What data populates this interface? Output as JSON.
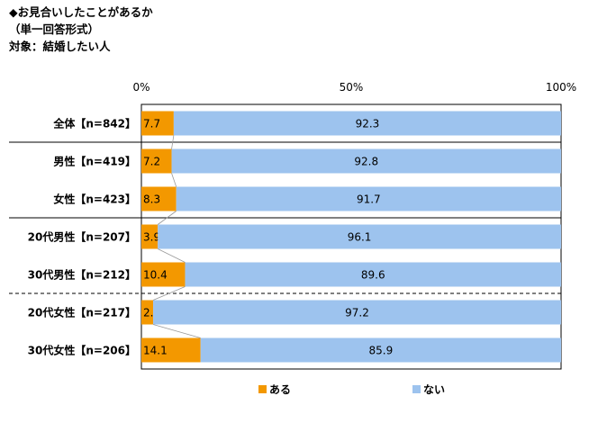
{
  "header": {
    "title": "◆お見合いしたことがあるか",
    "format": "（単一回答形式）",
    "subject": "対象：結婚したい人"
  },
  "chart_data": {
    "type": "bar",
    "orientation": "horizontal",
    "stacked": true,
    "percent_stacked": true,
    "categories": [
      "全体【n=842】",
      "男性【n=419】",
      "女性【n=423】",
      "20代男性【n=207】",
      "30代男性【n=212】",
      "20代女性【n=217】",
      "30代女性【n=206】"
    ],
    "series": [
      {
        "name": "ある",
        "color": "#f39800",
        "values": [
          7.7,
          7.2,
          8.3,
          3.9,
          10.4,
          2.8,
          14.1
        ]
      },
      {
        "name": "ない",
        "color": "#9dc3ee",
        "values": [
          92.3,
          92.8,
          91.7,
          96.1,
          89.6,
          97.2,
          85.9
        ]
      }
    ],
    "data_labels": [
      [
        "7.7",
        "7.2",
        "8.3",
        "3.9",
        "10.4",
        "2.8",
        "14.1"
      ],
      [
        "92.3",
        "92.8",
        "91.7",
        "96.1",
        "89.6",
        "97.2",
        "85.9"
      ]
    ],
    "x_ticks": [
      "0%",
      "50%",
      "100%"
    ],
    "xlim": [
      0,
      100
    ],
    "grid": false,
    "legend": "bottom",
    "group_separators": [
      "solid",
      "solid",
      "dashed"
    ]
  }
}
